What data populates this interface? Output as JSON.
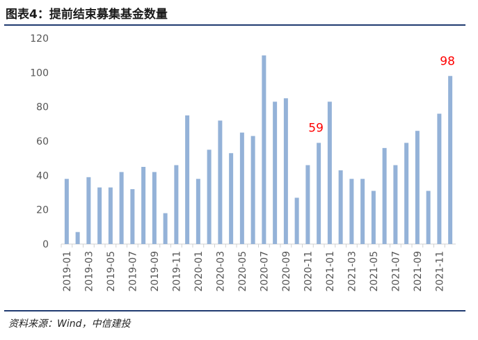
{
  "title": "图表4：提前结束募集基金数量",
  "source": "资料来源：Wind，中信建投",
  "chart_data": {
    "type": "bar",
    "title": "图表4：提前结束募集基金数量",
    "xlabel": "",
    "ylabel": "",
    "ylim": [
      0,
      120
    ],
    "yticks": [
      0,
      20,
      40,
      60,
      80,
      100,
      120
    ],
    "grid": false,
    "bar_color": "#94b2d8",
    "annotation_color": "#ff0000",
    "categories": [
      "2019-01",
      "2019-02",
      "2019-03",
      "2019-04",
      "2019-05",
      "2019-06",
      "2019-07",
      "2019-08",
      "2019-09",
      "2019-10",
      "2019-11",
      "2019-12",
      "2020-01",
      "2020-02",
      "2020-03",
      "2020-04",
      "2020-05",
      "2020-06",
      "2020-07",
      "2020-08",
      "2020-09",
      "2020-10",
      "2020-11",
      "2020-12",
      "2021-01",
      "2021-02",
      "2021-03",
      "2021-04",
      "2021-05",
      "2021-06",
      "2021-07",
      "2021-08",
      "2021-09",
      "2021-10",
      "2021-11",
      "2021-12"
    ],
    "tick_labels": [
      "2019-01",
      "2019-03",
      "2019-05",
      "2019-07",
      "2019-09",
      "2019-11",
      "2020-01",
      "2020-03",
      "2020-05",
      "2020-07",
      "2020-09",
      "2020-11",
      "2021-01",
      "2021-03",
      "2021-05",
      "2021-07",
      "2021-09",
      "2021-11"
    ],
    "values": [
      38,
      7,
      39,
      33,
      33,
      42,
      32,
      45,
      42,
      18,
      46,
      75,
      38,
      55,
      72,
      53,
      65,
      63,
      110,
      83,
      85,
      27,
      46,
      59,
      83,
      43,
      38,
      38,
      31,
      56,
      46,
      59,
      66,
      31,
      76,
      98
    ],
    "annotations": [
      {
        "category": "2020-12",
        "text": "59"
      },
      {
        "category": "2021-12",
        "text": "98"
      }
    ]
  }
}
